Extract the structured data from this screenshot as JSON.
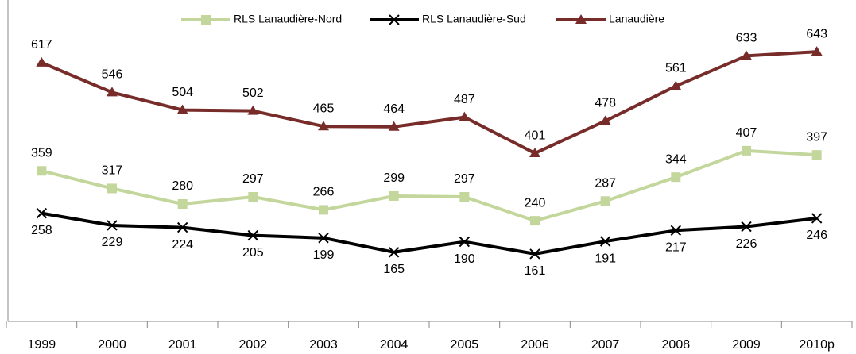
{
  "chart_data": {
    "type": "line",
    "categories": [
      "1999",
      "2000",
      "2001",
      "2002",
      "2003",
      "2004",
      "2005",
      "2006",
      "2007",
      "2008",
      "2009",
      "2010p"
    ],
    "series": [
      {
        "name": "RLS Lanaudière-Nord",
        "color": "#c3d69b",
        "marker": "square",
        "values": [
          359,
          317,
          280,
          297,
          266,
          299,
          297,
          240,
          287,
          344,
          407,
          397
        ]
      },
      {
        "name": "RLS Lanaudière-Sud",
        "color": "#000000",
        "marker": "x",
        "values": [
          258,
          229,
          224,
          205,
          199,
          165,
          190,
          161,
          191,
          217,
          226,
          246
        ]
      },
      {
        "name": "Lanaudière",
        "color": "#772c2a",
        "marker": "triangle",
        "values": [
          617,
          546,
          504,
          502,
          465,
          464,
          487,
          401,
          478,
          561,
          633,
          643
        ]
      }
    ],
    "ylim": [
      0,
      700
    ]
  }
}
